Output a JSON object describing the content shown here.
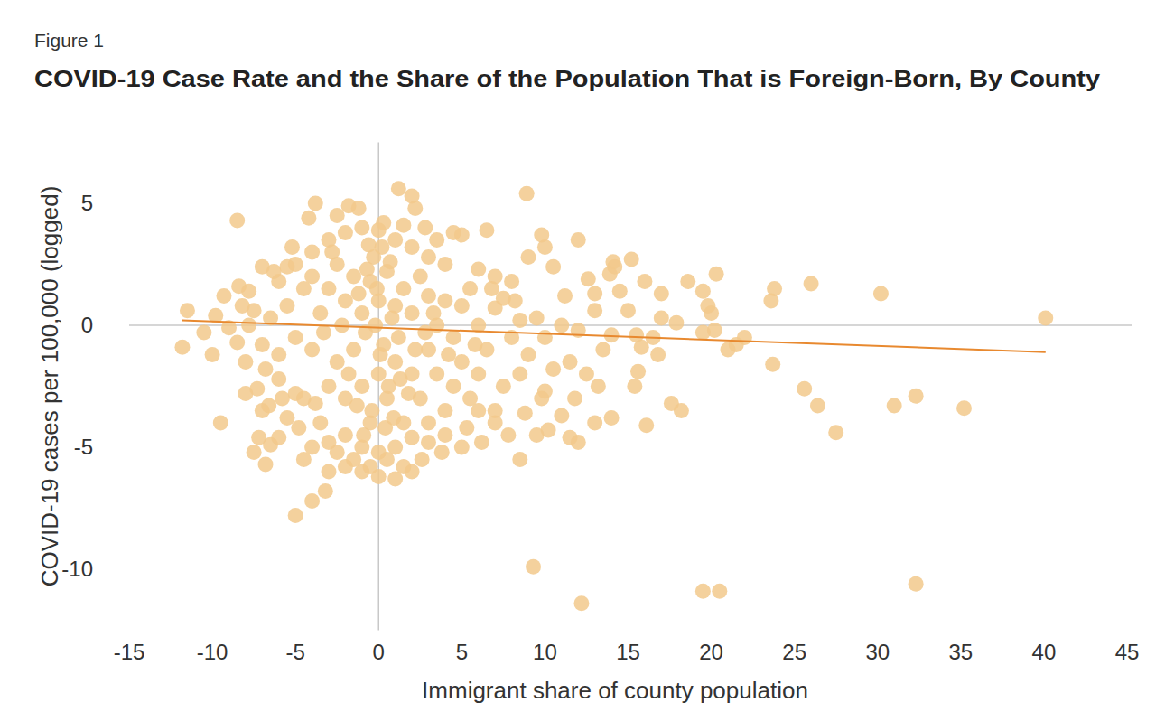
{
  "chart_data": {
    "type": "scatter",
    "subtitle": "Figure 1",
    "title": "COVID-19 Case Rate and the Share of the Population That is Foreign-Born, By County",
    "x_label": "Immigrant share of county population",
    "y_label": "COVID-19 cases per 100,000 (logged)",
    "xlim": [
      -15,
      45
    ],
    "ylim": [
      -12.5,
      7.5
    ],
    "xticks": [
      -15,
      -10,
      -5,
      0,
      5,
      10,
      15,
      20,
      25,
      30,
      35,
      40,
      45
    ],
    "yticks": [
      5,
      0,
      -5,
      -10
    ],
    "grid": false,
    "series": [
      {
        "type": "scatter",
        "color": "#f2c98c",
        "marker": "circle",
        "x": [
          -11.8,
          -11.5,
          -10.5,
          -10,
          -9.8,
          -9.5,
          -9.3,
          -8.5,
          -8.4,
          -7.8,
          -7.5,
          -7,
          -7.2,
          -6.8,
          -6.5,
          -5,
          -4,
          -3.2,
          -3.8,
          -1.8,
          1.2,
          2,
          2.2,
          8.9,
          12,
          9.3,
          12.2,
          19.5,
          20.5,
          32.3,
          40.1,
          30.2,
          26,
          23.8,
          23.6,
          20.3,
          18.6,
          19.5,
          17,
          16,
          15.2,
          14.2,
          14.1,
          13.9,
          12.6,
          13,
          22,
          21.5,
          21,
          20.2,
          20,
          19.8,
          19.5,
          17.9,
          17,
          16.5,
          15.5,
          15.6,
          15.4,
          16.1,
          17.6,
          18.2,
          23.7,
          25.6,
          26.4,
          27.5,
          31,
          32.3,
          35.2,
          13,
          14,
          12,
          11.5,
          11,
          10,
          9.5,
          8.5,
          7,
          6,
          5,
          4,
          3,
          2,
          1,
          0,
          -1,
          -2,
          -3,
          -4.5,
          -6,
          -7.5,
          -5.5,
          -7,
          -8,
          -8.5,
          -9,
          -6,
          -4,
          -3,
          -2,
          -1,
          0,
          1,
          2,
          3,
          4,
          5,
          6,
          7,
          8,
          9,
          10,
          10.5,
          9.8,
          6.5,
          4.5,
          -5,
          -4.5,
          -4,
          -3.5,
          -3,
          -2.5,
          -2,
          -1.5,
          -1,
          -0.5,
          0,
          0.5,
          1,
          1.5,
          2,
          2.5,
          3,
          3.5,
          4,
          4.5,
          5,
          5.5,
          6,
          6.5,
          7,
          7.5,
          8,
          8.5,
          9,
          9.5,
          10,
          11,
          11.5,
          12,
          13,
          13.5,
          14,
          12.5,
          10.5,
          9.8,
          8.5,
          7.5,
          7,
          6,
          5.5,
          5,
          4.5,
          4,
          3.5,
          3,
          2.5,
          2,
          1.5,
          1,
          0.5,
          0,
          -0.5,
          -1,
          -1.5,
          -2,
          -2.5,
          -3,
          -3.5,
          -4,
          -4.5,
          -5,
          -5.5,
          -6,
          -6.5,
          -7,
          -6,
          -5,
          -4,
          -3,
          -2,
          -1,
          0,
          1,
          2,
          3,
          -0.5,
          0.5,
          1.5,
          -1.5,
          -2.5,
          -0.2,
          0.3,
          -0.8,
          0.8,
          -1.2,
          1.2,
          -0.3,
          0.2,
          -0.6,
          0.7,
          -2.2,
          2.2,
          -1.8,
          1.8,
          -0.4,
          0.4,
          -0.9,
          0.9,
          -3.3,
          3.3,
          -2.8,
          2.8,
          -1.3,
          1.3,
          0.1,
          -0.1,
          0.6,
          -0.7,
          4.2,
          5.8,
          6.8,
          8.2,
          11.2,
          13.2,
          15,
          15.8,
          16.8,
          14.5,
          11.8,
          10.2,
          8.8,
          7.8,
          6.2,
          5.3,
          3.8,
          2.6,
          -3.8,
          -4.8,
          -5.8,
          -6.8,
          -7.8,
          -8.2,
          -5.2,
          -4.2,
          -2.5,
          -1.2,
          0.3,
          1.5,
          2.8,
          3.5,
          -6.3,
          -5.5,
          -8,
          -7.3,
          -6.6
        ],
        "values": [
          -0.9,
          0.6,
          -0.3,
          -1.2,
          0.4,
          -4,
          1.2,
          4.3,
          1.6,
          1.4,
          0.6,
          2.4,
          -4.6,
          -5.7,
          -4.9,
          -7.8,
          -7.2,
          -6.8,
          5,
          4.9,
          5.6,
          5.3,
          4.8,
          5.4,
          3.5,
          -9.9,
          -11.4,
          -10.9,
          -10.9,
          -10.6,
          0.3,
          1.3,
          1.7,
          1.5,
          1,
          2.1,
          1.8,
          1.4,
          1.3,
          1.8,
          2.7,
          2.4,
          2.6,
          2.1,
          1.9,
          1.3,
          -0.5,
          -0.8,
          -1,
          -0.2,
          0.5,
          0.8,
          -0.3,
          0.1,
          0.3,
          -0.5,
          -0.4,
          -1.9,
          -2.5,
          -4.1,
          -3.2,
          -3.5,
          -1.6,
          -2.6,
          -3.3,
          -4.4,
          -3.3,
          -2.9,
          -3.4,
          -4,
          -3.8,
          -4.8,
          -4.6,
          -3.7,
          -2.7,
          -4.5,
          -5.5,
          -4,
          -3.5,
          -5,
          -4.5,
          -4.8,
          -6,
          -6.3,
          -6.2,
          -6,
          -5.8,
          -6,
          -5.5,
          -4.6,
          -5.2,
          -3.8,
          -3.5,
          -2.8,
          -0.7,
          -0.1,
          -1.2,
          3,
          3.5,
          3.8,
          4,
          3.9,
          3.5,
          3.2,
          2.8,
          2.5,
          3.7,
          2.3,
          2,
          1.8,
          2.8,
          3.2,
          2.4,
          3.7,
          3.9,
          3.8,
          2.5,
          1.5,
          2,
          0.5,
          1.5,
          2.5,
          1,
          2,
          0.5,
          1.8,
          1,
          2.2,
          0.8,
          1.5,
          0.5,
          2,
          1.2,
          0,
          1,
          -0.5,
          0.8,
          1.5,
          0,
          -1,
          0.7,
          1.1,
          -0.5,
          0.2,
          -1.2,
          0.3,
          -0.5,
          0,
          -1.5,
          -0.2,
          0.6,
          -1,
          -0.4,
          -2,
          -1.8,
          -3,
          -2,
          -2.5,
          -3.5,
          -2,
          -3,
          -1.5,
          -2.5,
          -3.5,
          -2,
          -1,
          -3,
          -2,
          -4,
          -1.5,
          -3,
          -2,
          -4,
          -2.5,
          -1,
          -3,
          -1.5,
          -2.5,
          -4,
          -1,
          -3,
          -0.5,
          0.8,
          1.8,
          0.3,
          -0.8,
          -2.2,
          -2.8,
          -5,
          -4.8,
          -4.5,
          -5,
          -5.2,
          -5,
          -4.6,
          -4,
          -5.8,
          -5.5,
          -5.8,
          -5.5,
          -5.2,
          0,
          -0.8,
          -0.3,
          0.3,
          1.3,
          -0.5,
          2.8,
          3.2,
          3.3,
          2.6,
          0,
          -1,
          -2,
          -2.8,
          -3.5,
          -4.2,
          -4.5,
          -3.8,
          -0.3,
          0.5,
          3,
          -0.3,
          -3.3,
          -2.2,
          -1.2,
          1.5,
          -2.5,
          2.3,
          -1.2,
          -0.8,
          1.5,
          1,
          1.2,
          -2.5,
          0.6,
          -0.9,
          -1.2,
          1.4,
          -3,
          -4.3,
          -3.6,
          -4.5,
          -4.8,
          -4.2,
          -5.2,
          -5.5,
          -3.2,
          -4.2,
          -3,
          -1.8,
          0,
          0.8,
          3.2,
          4.4,
          4.5,
          4.8,
          4.2,
          4.1,
          4,
          3.5,
          2.2,
          2.4,
          -1.5,
          -2.6,
          -3.3
        ]
      },
      {
        "type": "line",
        "color": "#e8892f",
        "line_style": "solid",
        "x": [
          -11.8,
          40.1
        ],
        "values": [
          0.2,
          -1.1
        ]
      }
    ]
  }
}
